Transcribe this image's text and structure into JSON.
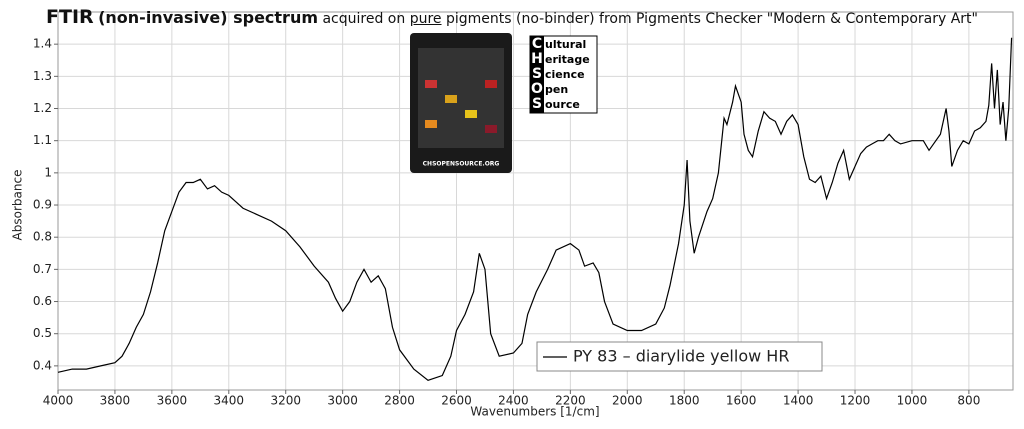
{
  "chart_data": {
    "type": "line",
    "title": [
      "FTIR",
      "(non-invasive) spectrum"
    ],
    "subtitle": [
      "acquired on",
      "pure",
      "pigments (no-binder) from Pigments Checker \"Modern & Contemporary Art\""
    ],
    "xlabel": "Wavenumbers [1/cm]",
    "ylabel": "Absorbance",
    "xlim": [
      4000,
      645
    ],
    "ylim": [
      0.325,
      1.5
    ],
    "xticks": [
      4000,
      3800,
      3600,
      3400,
      3200,
      3000,
      2800,
      2600,
      2400,
      2200,
      2000,
      1800,
      1600,
      1400,
      1200,
      1000,
      800
    ],
    "yticks": [
      0.4,
      0.5,
      0.6,
      0.7,
      0.8,
      0.9,
      1,
      1.1,
      1.2,
      1.3,
      1.4
    ],
    "grid": true,
    "logo": {
      "initials": [
        "C",
        "H",
        "S",
        "O",
        "S"
      ],
      "rest": [
        "ultural",
        "eritage",
        "cience",
        "pen",
        "ource"
      ],
      "card": "CHSOPENSOURCE.ORG"
    },
    "series": [
      {
        "name": "PY 83 – diarylide yellow HR",
        "color": "#000000",
        "x": [
          4000,
          3950,
          3900,
          3850,
          3800,
          3775,
          3750,
          3725,
          3700,
          3675,
          3650,
          3625,
          3600,
          3575,
          3550,
          3525,
          3500,
          3475,
          3450,
          3425,
          3400,
          3375,
          3350,
          3300,
          3250,
          3200,
          3150,
          3100,
          3050,
          3025,
          3000,
          2975,
          2950,
          2925,
          2900,
          2875,
          2850,
          2825,
          2800,
          2750,
          2700,
          2650,
          2620,
          2600,
          2570,
          2540,
          2520,
          2500,
          2480,
          2450,
          2400,
          2370,
          2350,
          2320,
          2280,
          2250,
          2200,
          2170,
          2150,
          2120,
          2100,
          2080,
          2050,
          2000,
          1950,
          1900,
          1870,
          1850,
          1820,
          1800,
          1790,
          1780,
          1765,
          1750,
          1720,
          1700,
          1680,
          1660,
          1650,
          1630,
          1620,
          1600,
          1590,
          1575,
          1560,
          1540,
          1520,
          1500,
          1480,
          1460,
          1440,
          1420,
          1400,
          1380,
          1360,
          1340,
          1320,
          1300,
          1280,
          1260,
          1240,
          1220,
          1200,
          1180,
          1160,
          1140,
          1120,
          1100,
          1080,
          1060,
          1040,
          1000,
          960,
          940,
          900,
          880,
          870,
          860,
          840,
          820,
          800,
          780,
          760,
          740,
          730,
          720,
          710,
          700,
          690,
          680,
          670,
          660,
          650
        ],
        "values": [
          0.38,
          0.39,
          0.39,
          0.4,
          0.41,
          0.43,
          0.47,
          0.52,
          0.56,
          0.63,
          0.72,
          0.82,
          0.88,
          0.94,
          0.97,
          0.97,
          0.98,
          0.95,
          0.96,
          0.94,
          0.93,
          0.91,
          0.89,
          0.87,
          0.85,
          0.82,
          0.77,
          0.71,
          0.66,
          0.61,
          0.57,
          0.6,
          0.66,
          0.7,
          0.66,
          0.68,
          0.64,
          0.52,
          0.45,
          0.39,
          0.355,
          0.37,
          0.43,
          0.51,
          0.56,
          0.63,
          0.75,
          0.7,
          0.5,
          0.43,
          0.44,
          0.47,
          0.56,
          0.63,
          0.7,
          0.76,
          0.78,
          0.76,
          0.71,
          0.72,
          0.69,
          0.6,
          0.53,
          0.51,
          0.51,
          0.53,
          0.58,
          0.65,
          0.78,
          0.9,
          1.04,
          0.85,
          0.75,
          0.8,
          0.88,
          0.92,
          1.0,
          1.17,
          1.15,
          1.22,
          1.27,
          1.22,
          1.12,
          1.07,
          1.05,
          1.13,
          1.19,
          1.17,
          1.16,
          1.12,
          1.16,
          1.18,
          1.15,
          1.05,
          0.98,
          0.97,
          0.99,
          0.92,
          0.97,
          1.03,
          1.07,
          0.98,
          1.02,
          1.06,
          1.08,
          1.09,
          1.1,
          1.1,
          1.12,
          1.1,
          1.09,
          1.1,
          1.1,
          1.07,
          1.12,
          1.2,
          1.13,
          1.02,
          1.07,
          1.1,
          1.09,
          1.13,
          1.14,
          1.16,
          1.21,
          1.34,
          1.2,
          1.32,
          1.15,
          1.22,
          1.1,
          1.2,
          1.42
        ]
      }
    ]
  }
}
